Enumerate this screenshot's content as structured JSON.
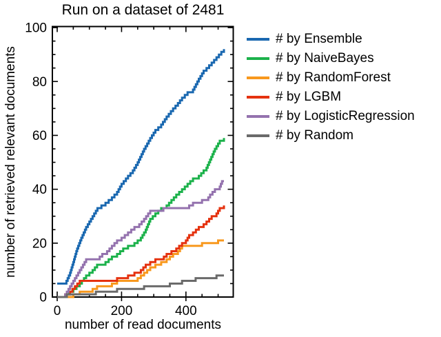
{
  "chart_data": {
    "type": "line",
    "line_style": "steps-post",
    "title": "Run on a dataset of 2481",
    "xlabel": "number of read documents",
    "ylabel": "number of retrieved relevant documents",
    "xlim": [
      -15,
      547
    ],
    "ylim": [
      0,
      100.4
    ],
    "x_ticks_major": [
      0,
      200,
      400
    ],
    "x_tick_labels": [
      "0",
      "200",
      "400"
    ],
    "x_ticks_minor": [
      50,
      100,
      150,
      250,
      300,
      350,
      450,
      500
    ],
    "y_ticks_major": [
      0,
      20,
      40,
      60,
      80,
      100
    ],
    "y_tick_labels": [
      "0",
      "20",
      "40",
      "60",
      "80",
      "100"
    ],
    "y_ticks_minor": [
      5,
      10,
      15,
      25,
      30,
      35,
      45,
      50,
      55,
      65,
      70,
      75,
      85,
      90,
      95
    ],
    "grid": false,
    "legend_position": "outside-right",
    "axis_color": "#000000",
    "series": [
      {
        "name": "# by Ensemble",
        "color": "#1A68B0",
        "points": [
          [
            0,
            5
          ],
          [
            25,
            5
          ],
          [
            40,
            9
          ],
          [
            50,
            13
          ],
          [
            62,
            18
          ],
          [
            75,
            22
          ],
          [
            90,
            26
          ],
          [
            110,
            30
          ],
          [
            125,
            33
          ],
          [
            150,
            35
          ],
          [
            170,
            37
          ],
          [
            186,
            39
          ],
          [
            200,
            42
          ],
          [
            220,
            45
          ],
          [
            235,
            47
          ],
          [
            250,
            50
          ],
          [
            270,
            55
          ],
          [
            289,
            59
          ],
          [
            305,
            62
          ],
          [
            323,
            64
          ],
          [
            340,
            67
          ],
          [
            360,
            70
          ],
          [
            375,
            72
          ],
          [
            388,
            74
          ],
          [
            405,
            76
          ],
          [
            422,
            77
          ],
          [
            440,
            81
          ],
          [
            455,
            84
          ],
          [
            464,
            85
          ],
          [
            480,
            87
          ],
          [
            495,
            89
          ],
          [
            510,
            91
          ],
          [
            518,
            92
          ]
        ]
      },
      {
        "name": "# by NaiveBayes",
        "color": "#1CB24B",
        "points": [
          [
            0,
            0
          ],
          [
            25,
            1
          ],
          [
            50,
            3
          ],
          [
            70,
            5
          ],
          [
            90,
            8
          ],
          [
            110,
            10
          ],
          [
            124,
            12
          ],
          [
            150,
            13
          ],
          [
            170,
            15
          ],
          [
            186,
            16
          ],
          [
            205,
            18
          ],
          [
            220,
            19
          ],
          [
            240,
            20
          ],
          [
            260,
            22
          ],
          [
            275,
            25
          ],
          [
            289,
            29
          ],
          [
            305,
            31
          ],
          [
            323,
            33
          ],
          [
            340,
            34
          ],
          [
            355,
            36
          ],
          [
            370,
            38
          ],
          [
            388,
            40
          ],
          [
            405,
            42
          ],
          [
            422,
            44
          ],
          [
            440,
            45
          ],
          [
            455,
            47
          ],
          [
            464,
            48
          ],
          [
            475,
            51
          ],
          [
            490,
            55
          ],
          [
            505,
            58
          ],
          [
            518,
            59
          ]
        ]
      },
      {
        "name": "# by RandomForest",
        "color": "#F8981D",
        "points": [
          [
            0,
            0
          ],
          [
            30,
            0
          ],
          [
            50,
            1
          ],
          [
            70,
            2
          ],
          [
            90,
            2
          ],
          [
            110,
            3
          ],
          [
            124,
            4
          ],
          [
            150,
            4
          ],
          [
            170,
            5
          ],
          [
            186,
            6
          ],
          [
            220,
            6
          ],
          [
            250,
            7
          ],
          [
            270,
            9
          ],
          [
            289,
            11
          ],
          [
            305,
            12
          ],
          [
            323,
            13
          ],
          [
            340,
            14
          ],
          [
            360,
            16
          ],
          [
            375,
            17
          ],
          [
            388,
            19
          ],
          [
            422,
            19
          ],
          [
            450,
            20
          ],
          [
            480,
            20
          ],
          [
            500,
            21
          ],
          [
            518,
            21
          ]
        ]
      },
      {
        "name": "# by LGBM",
        "color": "#E5320F",
        "points": [
          [
            0,
            0
          ],
          [
            25,
            1
          ],
          [
            40,
            2
          ],
          [
            55,
            4
          ],
          [
            70,
            6
          ],
          [
            124,
            6
          ],
          [
            150,
            6
          ],
          [
            186,
            7
          ],
          [
            200,
            7
          ],
          [
            220,
            8
          ],
          [
            240,
            9
          ],
          [
            260,
            10
          ],
          [
            275,
            12
          ],
          [
            289,
            13
          ],
          [
            305,
            14
          ],
          [
            323,
            14
          ],
          [
            340,
            16
          ],
          [
            355,
            17
          ],
          [
            370,
            18
          ],
          [
            388,
            20
          ],
          [
            400,
            21
          ],
          [
            410,
            23
          ],
          [
            422,
            24
          ],
          [
            440,
            26
          ],
          [
            455,
            27
          ],
          [
            464,
            28
          ],
          [
            480,
            30
          ],
          [
            495,
            31
          ],
          [
            505,
            33
          ],
          [
            518,
            34
          ]
        ]
      },
      {
        "name": "# by LogisticRegression",
        "color": "#9472AE",
        "points": [
          [
            0,
            0
          ],
          [
            25,
            1
          ],
          [
            35,
            3
          ],
          [
            45,
            5
          ],
          [
            55,
            7
          ],
          [
            65,
            9
          ],
          [
            75,
            11
          ],
          [
            85,
            13
          ],
          [
            90,
            14
          ],
          [
            124,
            14
          ],
          [
            140,
            16
          ],
          [
            155,
            17
          ],
          [
            170,
            19
          ],
          [
            186,
            21
          ],
          [
            200,
            22
          ],
          [
            220,
            24
          ],
          [
            240,
            26
          ],
          [
            255,
            27
          ],
          [
            270,
            29
          ],
          [
            289,
            32
          ],
          [
            330,
            33
          ],
          [
            400,
            33
          ],
          [
            410,
            34
          ],
          [
            422,
            35
          ],
          [
            435,
            35
          ],
          [
            450,
            36
          ],
          [
            464,
            36
          ],
          [
            475,
            38
          ],
          [
            490,
            40
          ],
          [
            505,
            41
          ],
          [
            512,
            43
          ],
          [
            518,
            43
          ]
        ]
      },
      {
        "name": "# by Random",
        "color": "#6A6A6A",
        "points": [
          [
            0,
            0
          ],
          [
            30,
            1
          ],
          [
            90,
            1
          ],
          [
            120,
            2
          ],
          [
            150,
            2
          ],
          [
            186,
            3
          ],
          [
            250,
            3
          ],
          [
            270,
            4
          ],
          [
            330,
            4
          ],
          [
            350,
            5
          ],
          [
            370,
            5
          ],
          [
            388,
            6
          ],
          [
            410,
            6
          ],
          [
            430,
            7
          ],
          [
            490,
            7
          ],
          [
            495,
            8
          ],
          [
            518,
            8
          ]
        ]
      }
    ]
  }
}
